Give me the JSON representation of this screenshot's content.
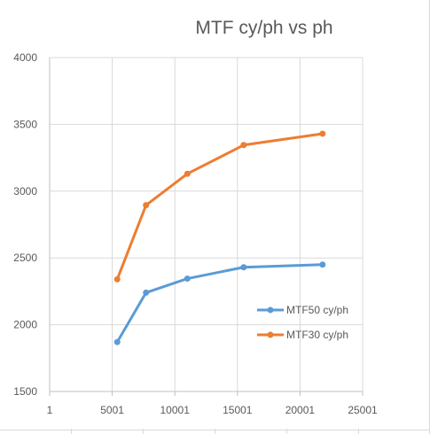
{
  "chart_data": {
    "type": "line",
    "title": "MTF cy/ph vs ph",
    "xlabel": "",
    "ylabel": "",
    "xlim": [
      1,
      25001
    ],
    "ylim": [
      1500,
      4000
    ],
    "x_ticks": [
      1,
      5001,
      10001,
      15001,
      20001,
      25001
    ],
    "y_ticks": [
      1500,
      2000,
      2500,
      3000,
      3500,
      4000
    ],
    "x_tick_labels": [
      "1",
      "5001",
      "10001",
      "15001",
      "20001",
      "25001"
    ],
    "y_tick_labels": [
      "1500",
      "2000",
      "2500",
      "3000",
      "3500",
      "4000"
    ],
    "grid": true,
    "legend_position": "right",
    "series": [
      {
        "name": "MTF50 cy/ph",
        "color": "#5b9bd5",
        "x": [
          5400,
          7700,
          11000,
          15500,
          21800
        ],
        "y": [
          1870,
          2240,
          2345,
          2430,
          2450
        ]
      },
      {
        "name": "MTF30 cy/ph",
        "color": "#ed7d31",
        "x": [
          5400,
          7700,
          11000,
          15500,
          21800
        ],
        "y": [
          2340,
          2895,
          3130,
          3345,
          3430
        ]
      }
    ]
  }
}
